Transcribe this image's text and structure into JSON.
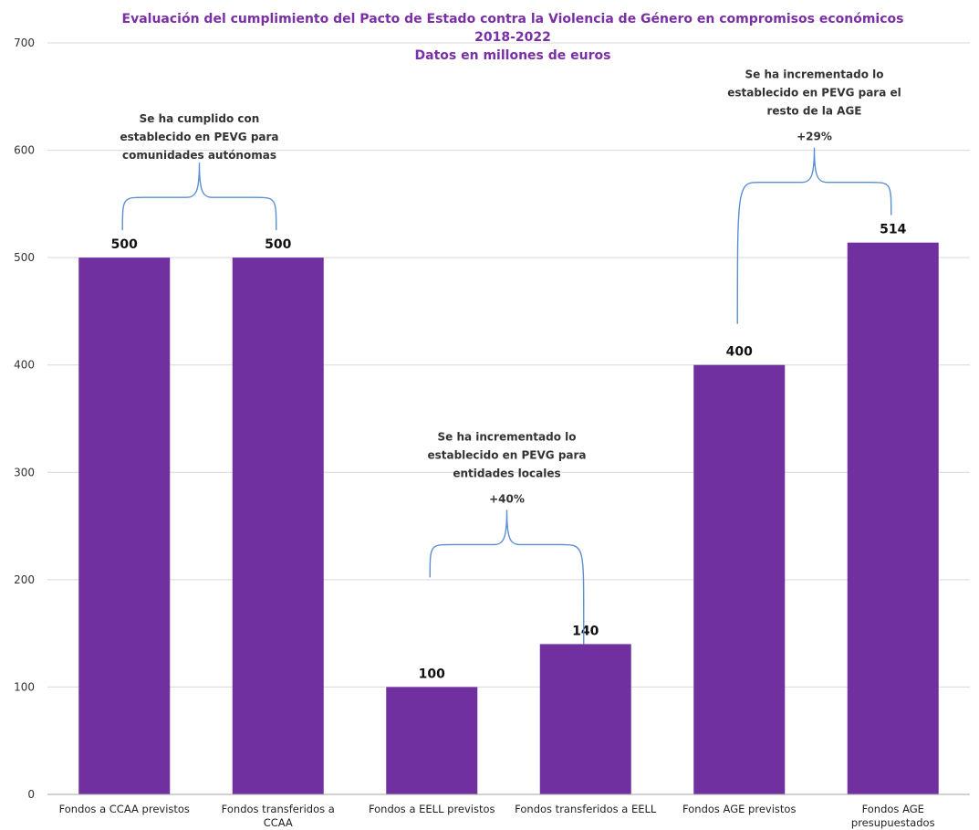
{
  "chart_data": {
    "type": "bar",
    "title": "Evaluación del cumplimiento del Pacto de Estado contra la Violencia de Género en compromisos económicos",
    "subtitle_lines": [
      "2018-2022",
      "Datos en millones de euros"
    ],
    "categories": [
      [
        "Fondos a CCAA previstos"
      ],
      [
        "Fondos transferidos a",
        "CCAA"
      ],
      [
        "Fondos a EELL previstos"
      ],
      [
        "Fondos transferidos a EELL"
      ],
      [
        "Fondos AGE previstos"
      ],
      [
        "Fondos AGE",
        "presupuestados"
      ]
    ],
    "values": [
      500,
      500,
      100,
      140,
      400,
      514
    ],
    "data_labels": [
      "500",
      "500",
      "100",
      "140",
      "400",
      "514"
    ],
    "ylim": [
      0,
      700
    ],
    "yticks": [
      0,
      100,
      200,
      300,
      400,
      500,
      600,
      700
    ],
    "grid": true,
    "legend": "none",
    "bar_color": "#7030a0",
    "title_color": "#7b2fa6",
    "annotations": [
      {
        "lines": [
          "Se ha cumplido con",
          "establecido en PEVG para",
          "comunidades autónomas"
        ],
        "percent": "",
        "from": 0,
        "to": 1
      },
      {
        "lines": [
          "Se ha incrementado lo",
          "establecido en PEVG para",
          "entidades locales"
        ],
        "percent": "+40%",
        "from": 2,
        "to": 3
      },
      {
        "lines": [
          "Se ha incrementado lo",
          "establecido en PEVG para el",
          "resto de la AGE"
        ],
        "percent": "+29%",
        "from": 4,
        "to": 5
      }
    ]
  }
}
